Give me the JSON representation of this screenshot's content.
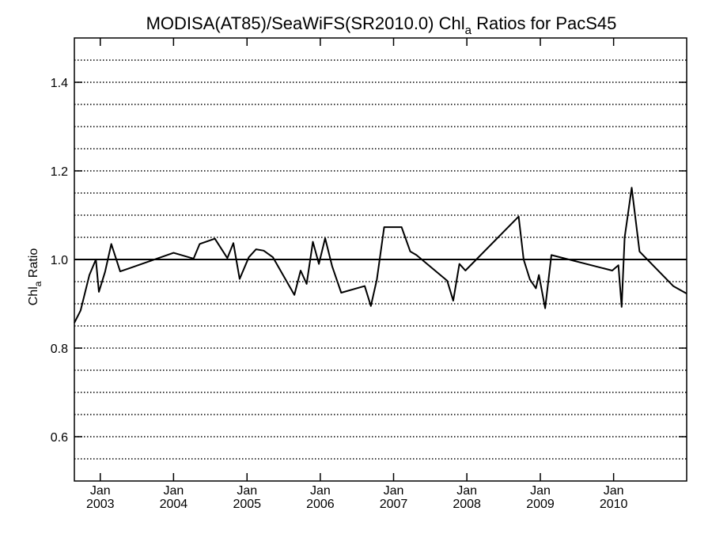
{
  "chart_data": {
    "type": "line",
    "title": "MODISA(AT85)/SeaWiFS(SR2010.0)  Chl",
    "title_sub": "a",
    "title_suffix": " Ratios for PacS45",
    "ylabel": "Chl",
    "ylabel_sub": "a",
    "ylabel_suffix": " Ratio",
    "ylim": [
      0.5,
      1.5
    ],
    "yticks": [
      0.6,
      0.8,
      1.0,
      1.2,
      1.4
    ],
    "ytick_labels": [
      "0.6",
      "0.8",
      "1.0",
      "1.2",
      "1.4"
    ],
    "y_gridlines": [
      0.55,
      0.6,
      0.65,
      0.7,
      0.75,
      0.8,
      0.85,
      0.9,
      0.95,
      1.05,
      1.1,
      1.15,
      1.2,
      1.25,
      1.3,
      1.35,
      1.4,
      1.45
    ],
    "grid": "dotted horizontal",
    "reference_line": 1.0,
    "xlim": [
      "2002-08-25",
      "2010-12-31"
    ],
    "xticks": [
      {
        "date": "2003-01-01",
        "month": "Jan",
        "year": "2003"
      },
      {
        "date": "2004-01-01",
        "month": "Jan",
        "year": "2004"
      },
      {
        "date": "2005-01-01",
        "month": "Jan",
        "year": "2005"
      },
      {
        "date": "2006-01-01",
        "month": "Jan",
        "year": "2006"
      },
      {
        "date": "2007-01-01",
        "month": "Jan",
        "year": "2007"
      },
      {
        "date": "2008-01-01",
        "month": "Jan",
        "year": "2008"
      },
      {
        "date": "2009-01-01",
        "month": "Jan",
        "year": "2009"
      },
      {
        "date": "2010-01-01",
        "month": "Jan",
        "year": "2010"
      }
    ],
    "series": [
      {
        "x": [
          "2002-08-25",
          "2002-09-25",
          "2002-11-08",
          "2002-12-10",
          "2002-12-25",
          "2003-01-25",
          "2003-02-25",
          "2003-04-10",
          "2003-05-25",
          "2004-01-01",
          "2004-04-10",
          "2004-05-10",
          "2004-07-25",
          "2004-09-25",
          "2004-10-25",
          "2004-11-25",
          "2005-01-10",
          "2005-02-15",
          "2005-03-25",
          "2005-05-10",
          "2005-08-25",
          "2005-09-25",
          "2005-10-25",
          "2005-11-25",
          "2005-12-25",
          "2006-01-25",
          "2006-03-01",
          "2006-04-15",
          "2006-08-10",
          "2006-09-10",
          "2006-10-10",
          "2006-11-15",
          "2007-02-10",
          "2007-03-25",
          "2007-04-25",
          "2007-09-25",
          "2007-10-25",
          "2007-11-25",
          "2007-12-25",
          "2008-09-15",
          "2008-10-10",
          "2008-11-10",
          "2008-12-10",
          "2008-12-25",
          "2009-01-25",
          "2009-02-25",
          "2009-12-25",
          "2010-01-25",
          "2010-02-10",
          "2010-02-25",
          "2010-04-01",
          "2010-05-10",
          "2010-10-25",
          "2010-12-31"
        ],
        "y": [
          0.857,
          0.885,
          0.965,
          1.0,
          0.927,
          0.972,
          1.035,
          0.973,
          0.98,
          1.015,
          1.002,
          1.035,
          1.047,
          1.003,
          1.037,
          0.956,
          1.005,
          1.023,
          1.02,
          1.005,
          0.92,
          0.975,
          0.945,
          1.04,
          0.99,
          1.048,
          0.985,
          0.925,
          0.94,
          0.895,
          0.955,
          1.073,
          1.073,
          1.018,
          1.01,
          0.952,
          0.907,
          0.99,
          0.975,
          1.097,
          1.0,
          0.955,
          0.935,
          0.965,
          0.89,
          1.01,
          0.975,
          0.987,
          0.893,
          1.05,
          1.162,
          1.018,
          0.94,
          0.923
        ]
      }
    ]
  }
}
